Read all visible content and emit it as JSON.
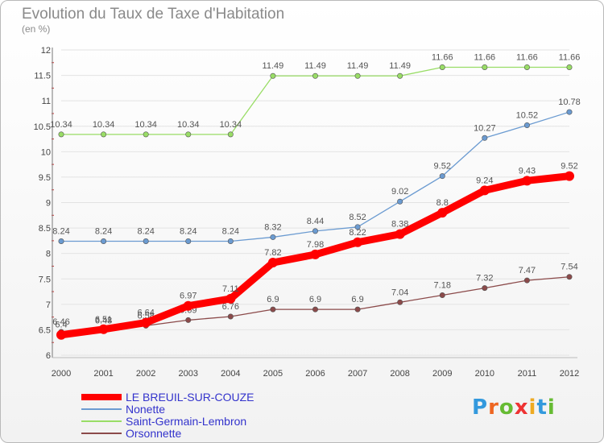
{
  "title": "Evolution du Taux de Taxe d'Habitation",
  "unit": "(en %)",
  "logo": "Proxiti",
  "chart_data": {
    "type": "line",
    "x": [
      "2000",
      "2001",
      "2002",
      "2003",
      "2004",
      "2005",
      "2006",
      "2007",
      "2008",
      "2009",
      "2010",
      "2011",
      "2012"
    ],
    "ylim": [
      6,
      12
    ],
    "yticks": [
      "6",
      "6.5",
      "7",
      "7.5",
      "8",
      "8.5",
      "9",
      "9.5",
      "10",
      "10.5",
      "11",
      "11.5",
      "12"
    ],
    "legend_position": "bottom-left",
    "series": [
      {
        "name": "Nonette",
        "color": "#6b9bd1",
        "values": [
          8.24,
          8.24,
          8.24,
          8.24,
          8.24,
          8.32,
          8.44,
          8.52,
          9.02,
          9.52,
          10.27,
          10.52,
          10.78
        ]
      },
      {
        "name": "Saint-Germain-Lembron",
        "color": "#99dd66",
        "values": [
          10.34,
          10.34,
          10.34,
          10.34,
          10.34,
          11.49,
          11.49,
          11.49,
          11.49,
          11.66,
          11.66,
          11.66,
          11.66
        ]
      },
      {
        "name": "Orsonnette",
        "color": "#8b4a4a",
        "values": [
          6.46,
          6.48,
          6.58,
          6.69,
          6.76,
          6.9,
          6.9,
          6.9,
          7.04,
          7.18,
          7.32,
          7.47,
          7.54
        ]
      },
      {
        "name": "LE BREUIL-SUR-COUZE",
        "color": "#ff0000",
        "values": [
          6.4,
          6.51,
          6.64,
          6.97,
          7.11,
          7.82,
          7.98,
          8.22,
          8.38,
          8.8,
          9.24,
          9.43,
          9.52
        ]
      }
    ],
    "labels": {
      "Nonette": [
        "8.24",
        "8.24",
        "8.24",
        "8.24",
        "8.24",
        "8.32",
        "8.44",
        "8.52",
        "9.02",
        "9.52",
        "10.27",
        "10.52",
        "10.78"
      ],
      "Saint-Germain-Lembron": [
        "10.34",
        "10.34",
        "10.34",
        "10.34",
        "10.34",
        "11.49",
        "11.49",
        "11.49",
        "11.49",
        "11.66",
        "11.66",
        "11.66",
        "11.66"
      ],
      "Orsonnette": [
        "6.46",
        "6.48",
        "6.58",
        "6.69",
        "6.76",
        "6.9",
        "6.9",
        "6.9",
        "7.04",
        "7.18",
        "7.32",
        "7.47",
        "7.54"
      ],
      "LE BREUIL-SUR-COUZE": [
        "6.4",
        "6.51",
        "6.64",
        "6.97",
        "7.11",
        "7.82",
        "7.98",
        "8.22",
        "8.38",
        "8.8",
        "9.24",
        "9.43",
        "9.52"
      ]
    },
    "legend_order": [
      "LE BREUIL-SUR-COUZE",
      "Nonette",
      "Saint-Germain-Lembron",
      "Orsonnette"
    ]
  }
}
